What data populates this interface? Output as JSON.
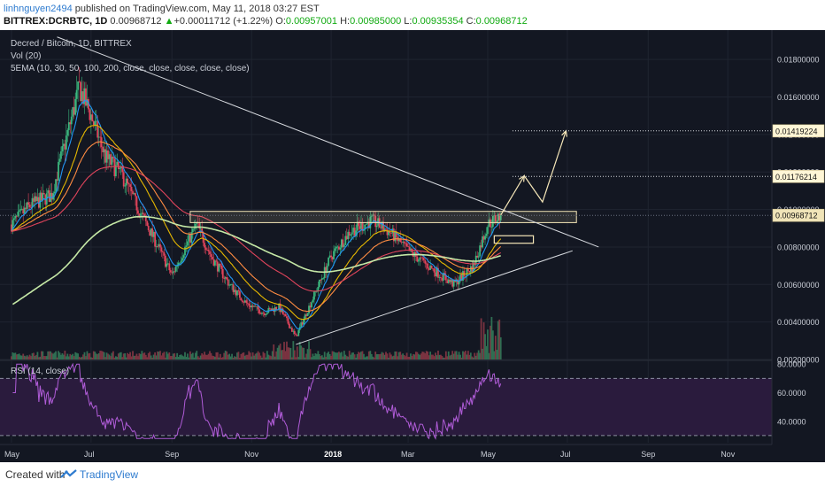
{
  "header": {
    "username": "linhnguyen2494",
    "published": "published on TradingView.com, May 11, 2018 03:27 EST",
    "symbol": "BITTREX:DCRBTC, 1D",
    "price": "0.00968712",
    "change_arrow": "▲",
    "change": "+0.00011712 (+1.22%)",
    "o_label": "O:",
    "o_value": "0.00957001",
    "h_label": "H:",
    "h_value": "0.00985000",
    "l_label": "L:",
    "l_value": "0.00935354",
    "c_label": "C:",
    "c_value": "0.00968712"
  },
  "legend": {
    "title": "Decred / Bitcoin, 1D, BITTREX",
    "vol": "Vol (20)",
    "ema": "5EMA (10, 30, 50, 100, 200, close, close, close, close, close)",
    "rsi": "RSI (14, close)"
  },
  "colors": {
    "background": "#131722",
    "up_candle": "#3bb77e",
    "down_candle": "#e0445b",
    "ema": [
      "#2196f3",
      "#e6b800",
      "#ff8c42",
      "#e0445b",
      "#c5e8a6"
    ],
    "rsi_line": "#b05cd8",
    "rsi_band": "#2a1b3d",
    "annotation": "#f5e6b8",
    "trendline": "#d8dbe0"
  },
  "chart_data": {
    "type": "candlestick",
    "x_ticks": [
      "May",
      "Jul",
      "Sep",
      "Nov",
      "2018",
      "Mar",
      "May",
      "Jul",
      "Sep",
      "Nov"
    ],
    "price_ticks": [
      "0.01800000",
      "0.01600000",
      "0.01400000",
      "0.01200000",
      "0.01000000",
      "0.00800000",
      "0.00600000",
      "0.00400000",
      "0.00200000"
    ],
    "ylim": [
      0.002,
      0.019
    ],
    "price_labels": [
      {
        "value": 0.01419224,
        "text": "0.01419224"
      },
      {
        "value": 0.01176214,
        "text": "0.01176214"
      },
      {
        "value": 0.00968712,
        "text": "0.00968712"
      }
    ],
    "close_series": [
      {
        "date": "2017-05-01",
        "close": 0.0092
      },
      {
        "date": "2017-05-15",
        "close": 0.0102
      },
      {
        "date": "2017-06-01",
        "close": 0.0108
      },
      {
        "date": "2017-06-12",
        "close": 0.0138
      },
      {
        "date": "2017-06-22",
        "close": 0.0165
      },
      {
        "date": "2017-07-01",
        "close": 0.015
      },
      {
        "date": "2017-07-12",
        "close": 0.0128
      },
      {
        "date": "2017-07-25",
        "close": 0.0118
      },
      {
        "date": "2017-08-05",
        "close": 0.0102
      },
      {
        "date": "2017-08-20",
        "close": 0.0082
      },
      {
        "date": "2017-09-01",
        "close": 0.0065
      },
      {
        "date": "2017-09-10",
        "close": 0.0078
      },
      {
        "date": "2017-09-20",
        "close": 0.0092
      },
      {
        "date": "2017-10-01",
        "close": 0.0075
      },
      {
        "date": "2017-10-15",
        "close": 0.006
      },
      {
        "date": "2017-10-28",
        "close": 0.005
      },
      {
        "date": "2017-11-10",
        "close": 0.0045
      },
      {
        "date": "2017-11-22",
        "close": 0.0048
      },
      {
        "date": "2017-12-05",
        "close": 0.0032
      },
      {
        "date": "2017-12-15",
        "close": 0.0048
      },
      {
        "date": "2018-01-01",
        "close": 0.0075
      },
      {
        "date": "2018-01-15",
        "close": 0.0088
      },
      {
        "date": "2018-02-01",
        "close": 0.0094
      },
      {
        "date": "2018-02-15",
        "close": 0.0088
      },
      {
        "date": "2018-03-01",
        "close": 0.0078
      },
      {
        "date": "2018-03-20",
        "close": 0.0068
      },
      {
        "date": "2018-04-05",
        "close": 0.006
      },
      {
        "date": "2018-04-20",
        "close": 0.007
      },
      {
        "date": "2018-05-01",
        "close": 0.0092
      },
      {
        "date": "2018-05-11",
        "close": 0.00968712
      }
    ],
    "rsi": {
      "ticks": [
        "80.0000",
        "60.0000",
        "40.0000"
      ],
      "bands": [
        70,
        30
      ],
      "ylim": [
        25,
        82
      ]
    }
  }
}
